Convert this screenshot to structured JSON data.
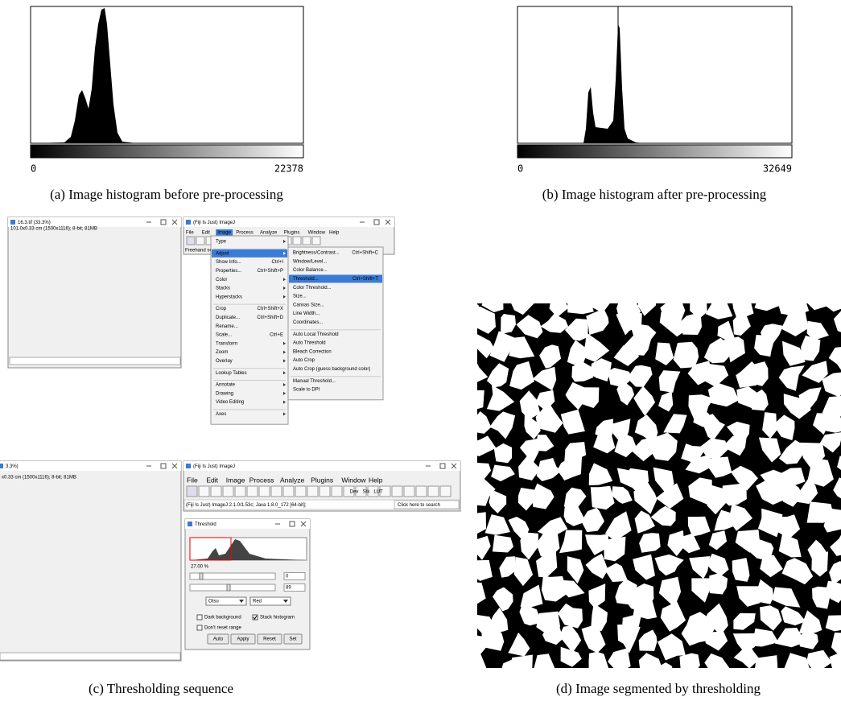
{
  "panel_a": {
    "caption": "(a) Image histogram before pre-processing",
    "min_label": 0,
    "max_label": 22378
  },
  "panel_b": {
    "caption": "(b) Image histogram after pre-processing",
    "min_label": 0,
    "max_label": 32649
  },
  "panel_c": {
    "caption": "(c) Thresholding sequence",
    "top": {
      "image_window": {
        "title": "16.3.tif (33.3%)",
        "info": "101.0x0.33 cm (1500x1116); 8-bit; 81MB"
      },
      "imagej_title": "(Fiji Is Just) ImageJ",
      "menubar": [
        "File",
        "Edit",
        "Image",
        "Process",
        "Analyze",
        "Plugins",
        "Window",
        "Help"
      ],
      "status": "Freehand sel",
      "image_menu": [
        [
          {
            "label": "Type",
            "arrow": true
          }
        ],
        [
          {
            "label": "Adjust",
            "arrow": true,
            "active": true
          },
          {
            "label": "Show Info...",
            "shortcut": "Ctrl+I"
          },
          {
            "label": "Properties...",
            "shortcut": "Ctrl+Shift+P"
          },
          {
            "label": "Color",
            "arrow": true
          },
          {
            "label": "Stacks",
            "arrow": true
          },
          {
            "label": "Hyperstacks",
            "arrow": true
          }
        ],
        [
          {
            "label": "Crop",
            "shortcut": "Ctrl+Shift+X"
          },
          {
            "label": "Duplicate...",
            "shortcut": "Ctrl+Shift+D"
          },
          {
            "label": "Rename..."
          },
          {
            "label": "Scale...",
            "shortcut": "Ctrl+E"
          },
          {
            "label": "Transform",
            "arrow": true
          },
          {
            "label": "Zoom",
            "arrow": true
          },
          {
            "label": "Overlay",
            "arrow": true
          }
        ],
        [
          {
            "label": "Lookup Tables",
            "arrow": true
          }
        ],
        [
          {
            "label": "Annotate",
            "arrow": true
          },
          {
            "label": "Drawing",
            "arrow": true
          },
          {
            "label": "Video Editing",
            "arrow": true
          }
        ],
        [
          {
            "label": "Axes",
            "arrow": true
          }
        ]
      ],
      "adjust_menu": [
        [
          {
            "label": "Brightness/Contrast...",
            "shortcut": "Ctrl+Shift+C"
          },
          {
            "label": "Window/Level..."
          },
          {
            "label": "Color Balance..."
          },
          {
            "label": "Threshold...",
            "shortcut": "Ctrl+Shift+T",
            "active": true
          },
          {
            "label": "Color Threshold..."
          },
          {
            "label": "Size..."
          },
          {
            "label": "Canvas Size..."
          },
          {
            "label": "Line Width..."
          },
          {
            "label": "Coordinates..."
          }
        ],
        [
          {
            "label": "Auto Local Threshold"
          },
          {
            "label": "Auto Threshold"
          },
          {
            "label": "Bleach Correction"
          },
          {
            "label": "Auto Crop"
          },
          {
            "label": "Auto Crop (guess background color)"
          }
        ],
        [
          {
            "label": "Manual Threshold..."
          },
          {
            "label": "Scale to DPI"
          }
        ]
      ]
    },
    "bottom": {
      "image_window": {
        "title": "3.3%)",
        "info": "x0.33 cm (1500x1116); 8-bit; 81MB"
      },
      "imagej_title": "(Fiji Is Just) ImageJ",
      "menubar": [
        "File",
        "Edit",
        "Image",
        "Process",
        "Analyze",
        "Plugins",
        "Window",
        "Help"
      ],
      "tool_labels": [
        "Dev",
        "Stk",
        "LUT"
      ],
      "status": "(Fiji Is Just) ImageJ 2.1.0/1.53c; Java 1.8.0_172 [64-bit];",
      "search": "Click here to search",
      "threshold": {
        "title": "Threshold",
        "percent": "27.00 %",
        "lower": "0",
        "upper": "89",
        "method": "Otsu",
        "display": "Red",
        "checks": [
          {
            "label": "Dark background",
            "checked": false
          },
          {
            "label": "Stack histogram",
            "checked": true
          },
          {
            "label": "Don't reset range",
            "checked": false
          }
        ],
        "buttons": [
          "Auto",
          "Apply",
          "Reset",
          "Set"
        ]
      }
    }
  },
  "panel_d": {
    "caption": "(d) Image segmented by thresholding"
  }
}
